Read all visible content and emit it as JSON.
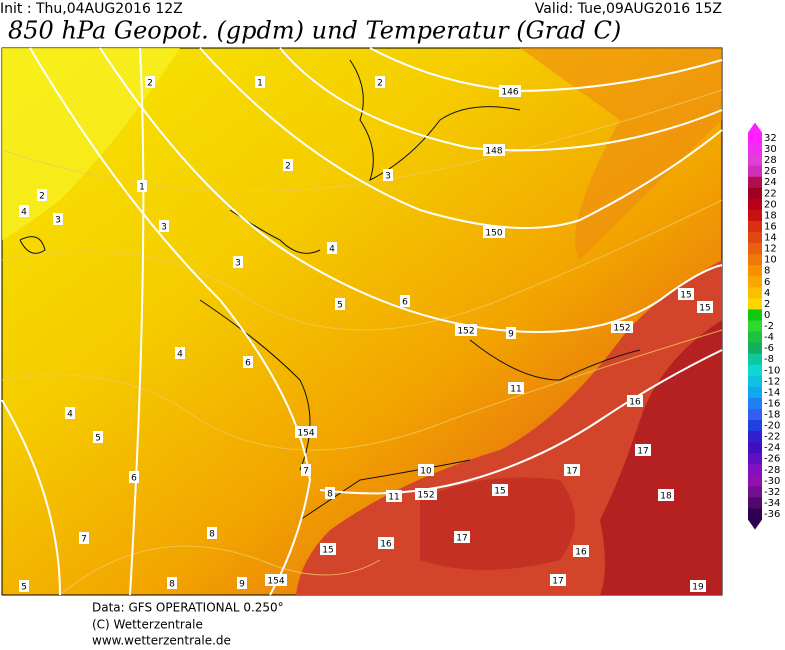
{
  "header": {
    "init": "Init : Thu,04AUG2016 12Z",
    "valid": "Valid: Tue,09AUG2016 15Z",
    "title": "850 hPa Geopot. (gpdm) und Temperatur (Grad C)"
  },
  "colorbar": {
    "ticks": [
      32,
      30,
      28,
      26,
      24,
      22,
      20,
      18,
      16,
      14,
      12,
      10,
      8,
      6,
      4,
      2,
      0,
      -2,
      -4,
      -6,
      -8,
      -10,
      -12,
      -14,
      -16,
      -18,
      -20,
      -22,
      -24,
      -26,
      -28,
      -30,
      -32,
      -34,
      -36
    ],
    "colors": [
      "#ff20ff",
      "#f030f0",
      "#e040d8",
      "#d030b8",
      "#b01050",
      "#a00020",
      "#b80018",
      "#c81010",
      "#d83010",
      "#e04810",
      "#e86010",
      "#f07808",
      "#f89000",
      "#f8a800",
      "#f8c000",
      "#f8d800",
      "#10c810",
      "#30d830",
      "#20c040",
      "#10b060",
      "#10c8a0",
      "#10d8d0",
      "#10c0e0",
      "#10a8f0",
      "#2080f0",
      "#3060f0",
      "#2040e0",
      "#3020d0",
      "#4010c0",
      "#6010c0",
      "#8010c0",
      "#9010b0",
      "#701090",
      "#500870",
      "#300050"
    ]
  },
  "geopotential_labels": [
    "146",
    "148",
    "150",
    "152",
    "152",
    "154",
    "152",
    "154"
  ],
  "temperature_labels": [
    "1",
    "2",
    "2",
    "2",
    "3",
    "1",
    "2",
    "4",
    "3",
    "3",
    "4",
    "3",
    "5",
    "6",
    "9",
    "15",
    "15",
    "4",
    "6",
    "11",
    "16",
    "4",
    "5",
    "17",
    "10",
    "7",
    "6",
    "17",
    "11",
    "15",
    "18",
    "8",
    "8",
    "16",
    "17",
    "7",
    "15",
    "16",
    "8",
    "9",
    "5",
    "17",
    "19"
  ],
  "footer": [
    "Data: GFS OPERATIONAL 0.250°",
    "(C) Wetterzentrale",
    "www.wetterzentrale.de"
  ]
}
